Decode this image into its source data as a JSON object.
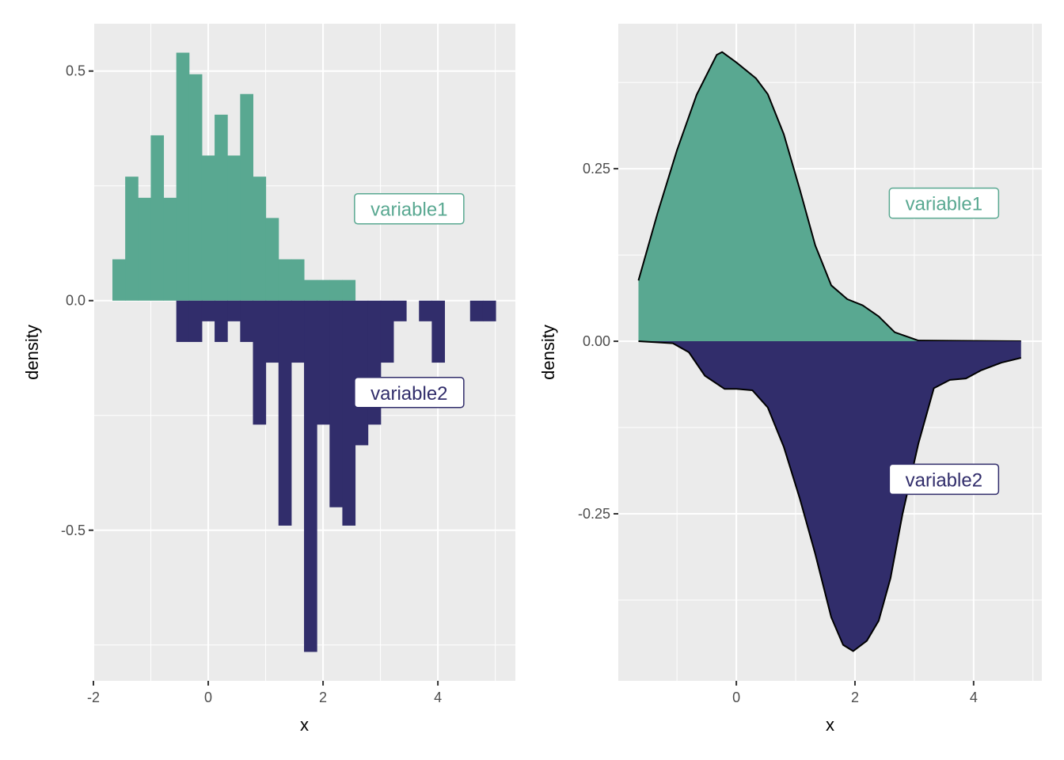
{
  "chart_data": [
    {
      "type": "histogram",
      "panel": "left",
      "xlabel": "x",
      "ylabel": "density",
      "xlim": [
        -2,
        5.35
      ],
      "ylim": [
        -0.828,
        0.603
      ],
      "xticks": [
        -2,
        0,
        2,
        4
      ],
      "xtick_labels": [
        "-2",
        "0",
        "2",
        "4"
      ],
      "yticks": [
        -0.5,
        0.0,
        0.5
      ],
      "ytick_labels": [
        "-0.5",
        "0.0",
        "0.5"
      ],
      "bin_start": -1.669,
      "bin_width": 0.2225,
      "series": [
        {
          "name": "variable1",
          "color": "#59a891",
          "direction": "up",
          "values": [
            0.09,
            0.27,
            0.224,
            0.36,
            0.224,
            0.54,
            0.493,
            0.316,
            0.405,
            0.316,
            0.45,
            0.27,
            0.18,
            0.09,
            0.09,
            0.045,
            0.045,
            0.045,
            0.045
          ]
        },
        {
          "name": "variable2",
          "color": "#312d6b",
          "direction": "down",
          "offset_bins": 5,
          "values": [
            0.09,
            0.09,
            0.045,
            0.09,
            0.045,
            0.09,
            0.27,
            0.135,
            0.49,
            0.135,
            0.765,
            0.27,
            0.45,
            0.49,
            0.315,
            0.27,
            0.135,
            0.045,
            0,
            0.045,
            0.135,
            0,
            0,
            0.045,
            0.045
          ]
        }
      ],
      "annotations": [
        {
          "text": "variable1",
          "x": 3.5,
          "y": 0.2,
          "color": "#59a891"
        },
        {
          "text": "variable2",
          "x": 3.5,
          "y": -0.2,
          "color": "#312d6b"
        }
      ]
    },
    {
      "type": "area",
      "panel": "right",
      "xlabel": "x",
      "ylabel": "density",
      "xlim": [
        -1.99,
        5.15
      ],
      "ylim": [
        -0.492,
        0.46
      ],
      "xticks": [
        0,
        2,
        4
      ],
      "xtick_labels": [
        "0",
        "2",
        "4"
      ],
      "yticks": [
        -0.25,
        0.0,
        0.25
      ],
      "ytick_labels": [
        "-0.25",
        "0.00",
        "0.25"
      ],
      "series": [
        {
          "name": "variable1",
          "color": "#59a891",
          "x": [
            -1.65,
            -1.33,
            -1.0,
            -0.67,
            -0.33,
            -0.24,
            0,
            0.33,
            0.53,
            0.8,
            1.07,
            1.33,
            1.6,
            1.87,
            2.13,
            2.4,
            2.67,
            3.07,
            4.8
          ],
          "y": [
            0.088,
            0.185,
            0.277,
            0.357,
            0.415,
            0.419,
            0.404,
            0.381,
            0.358,
            0.3,
            0.22,
            0.139,
            0.081,
            0.061,
            0.052,
            0.036,
            0.013,
            0.001,
            0.0
          ]
        },
        {
          "name": "variable2",
          "color": "#312d6b",
          "x": [
            -1.65,
            -1.07,
            -0.8,
            -0.53,
            -0.2,
            0,
            0.27,
            0.53,
            0.8,
            1.07,
            1.33,
            1.6,
            1.8,
            1.97,
            2.2,
            2.4,
            2.6,
            2.8,
            3.07,
            3.33,
            3.6,
            3.87,
            4.13,
            4.47,
            4.8
          ],
          "y": [
            0,
            -0.003,
            -0.016,
            -0.05,
            -0.069,
            -0.069,
            -0.071,
            -0.096,
            -0.153,
            -0.228,
            -0.308,
            -0.4,
            -0.44,
            -0.449,
            -0.434,
            -0.405,
            -0.343,
            -0.251,
            -0.148,
            -0.068,
            -0.056,
            -0.054,
            -0.042,
            -0.031,
            -0.024
          ]
        }
      ],
      "annotations": [
        {
          "text": "variable1",
          "x": 3.5,
          "y": 0.2,
          "color": "#59a891"
        },
        {
          "text": "variable2",
          "x": 3.5,
          "y": -0.2,
          "color": "#312d6b"
        }
      ]
    }
  ]
}
